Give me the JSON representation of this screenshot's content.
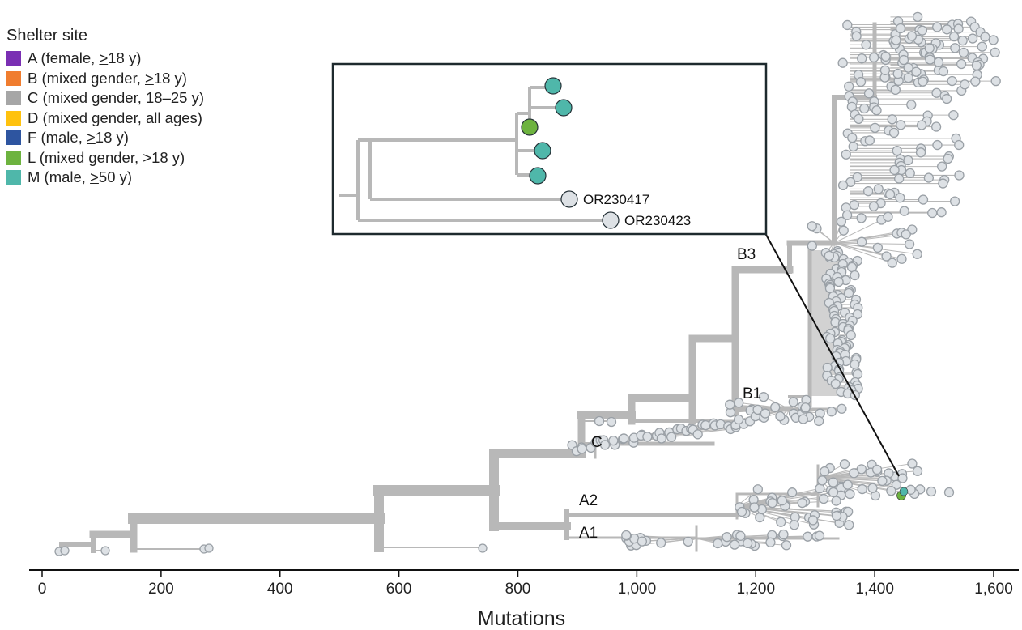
{
  "legend": {
    "title": "Shelter site",
    "items": [
      {
        "code": "A",
        "label": "A (female, ≥18 y)",
        "color": "#7a2fb3"
      },
      {
        "code": "B",
        "label": "B (mixed gender, ≥18 y)",
        "color": "#f07d2f"
      },
      {
        "code": "C",
        "label": "C (mixed gender, 18–25 y)",
        "color": "#a6a6a6"
      },
      {
        "code": "D",
        "label": "D (mixed gender, all ages)",
        "color": "#ffc20e"
      },
      {
        "code": "F",
        "label": "F (male, ≥18 y)",
        "color": "#2e55a0"
      },
      {
        "code": "L",
        "label": "L (mixed gender, ≥18 y)",
        "color": "#6db33f"
      },
      {
        "code": "M",
        "label": "M (male, ≥50 y)",
        "color": "#4fb7aa"
      }
    ]
  },
  "chart_data": {
    "type": "scatter",
    "xlabel": "Mutations",
    "xlim": [
      -20,
      1620
    ],
    "xticks": [
      0,
      200,
      400,
      600,
      800,
      1000,
      1200,
      1400,
      1600
    ],
    "xtick_labels": [
      "0",
      "200",
      "400",
      "600",
      "800",
      "1,000",
      "1,200",
      "1,400",
      "1,600"
    ],
    "clade_labels": [
      "B3",
      "B1",
      "C",
      "A2",
      "A1"
    ],
    "inset": {
      "sites": [
        "M",
        "M",
        "L",
        "M",
        "M"
      ],
      "reference_labels": [
        "OR230417",
        "OR230423"
      ]
    },
    "colors": {
      "branch": "#b8b8b8",
      "tip_fill": "#dde1e5",
      "tip_stroke": "#9aa0a6",
      "inset_border": "#1e2a2e"
    }
  }
}
